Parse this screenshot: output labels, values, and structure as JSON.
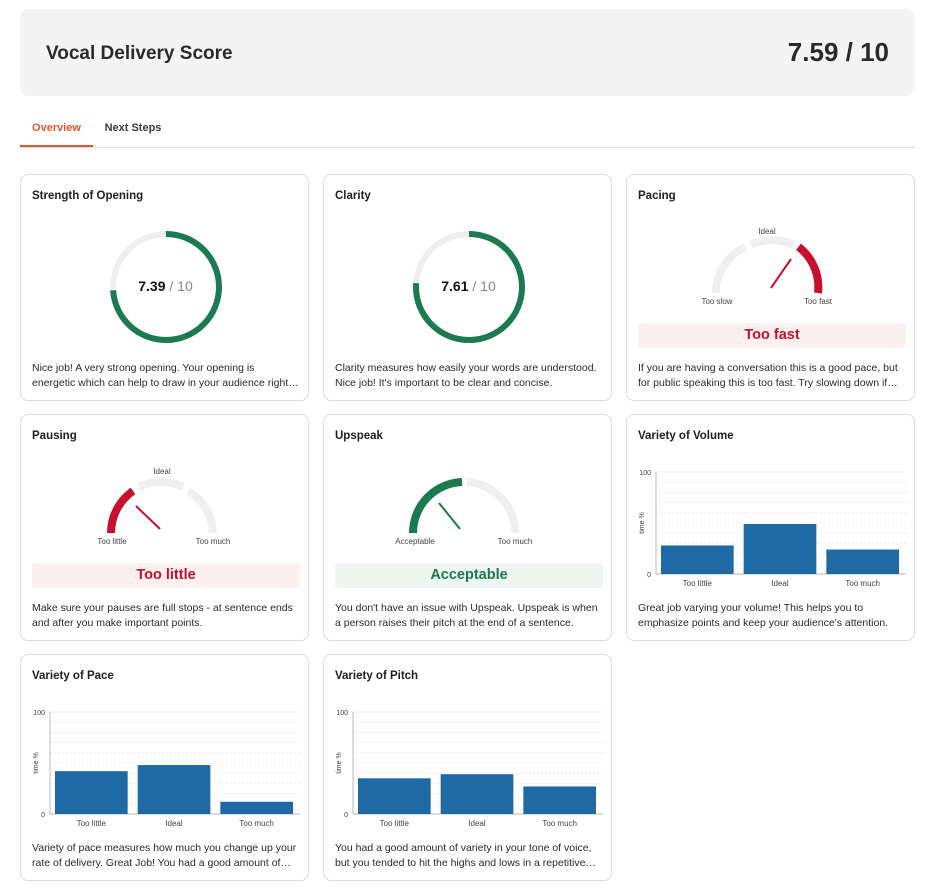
{
  "header": {
    "title": "Vocal Delivery Score",
    "score": "7.59 / 10"
  },
  "tabs": [
    {
      "label": "Overview",
      "active": true
    },
    {
      "label": "Next Steps",
      "active": false
    }
  ],
  "colors": {
    "accent": "#e4572e",
    "good": "#1b7a4e",
    "bad": "#c8102e",
    "bar": "#1f6aa5",
    "track": "#efefef"
  },
  "cards": {
    "opening": {
      "title": "Strength of Opening",
      "value": "7.39",
      "denominator": "/ 10",
      "score": 7.39,
      "max": 10,
      "description": "Nice job! A very strong opening. Your opening is energetic which can help to draw in your audience right from the start."
    },
    "clarity": {
      "title": "Clarity",
      "value": "7.61",
      "denominator": "/ 10",
      "score": 7.61,
      "max": 10,
      "description": "Clarity measures how easily your words are understood. Nice job! It's important to be clear and concise."
    },
    "pacing": {
      "title": "Pacing",
      "gauge_low": "Too slow",
      "gauge_mid": "Ideal",
      "gauge_high": "Too fast",
      "verdict": "Too fast",
      "verdict_status": "bad",
      "description": "If you are having a conversation this is a good pace, but for public speaking this is too fast. Try slowing down if you can."
    },
    "pausing": {
      "title": "Pausing",
      "gauge_low": "Too little",
      "gauge_mid": "Ideal",
      "gauge_high": "Too much",
      "verdict": "Too little",
      "verdict_status": "bad",
      "description": "Make sure your pauses are full stops - at sentence ends and after you make important points."
    },
    "upspeak": {
      "title": "Upspeak",
      "gauge_low": "Acceptable",
      "gauge_high": "Too much",
      "verdict": "Acceptable",
      "verdict_status": "good",
      "description": "You don't have an issue with Upspeak. Upspeak is when a person raises their pitch at the end of a sentence."
    },
    "volume": {
      "title": "Variety of Volume",
      "description": "Great job varying your volume! This helps you to emphasize points and keep your audience's attention."
    },
    "pace": {
      "title": "Variety of Pace",
      "description": "Variety of pace measures how much you change up your rate of delivery. Great Job! You had a good amount of variety."
    },
    "pitch": {
      "title": "Variety of Pitch",
      "description": "You had a good amount of variety in your tone of voice, but you tended to hit the highs and lows in a repetitive way."
    }
  },
  "chart_data": [
    {
      "id": "volume",
      "type": "bar",
      "categories": [
        "Too little",
        "Ideal",
        "Too much"
      ],
      "values": [
        28,
        49,
        24
      ],
      "ylabel": "time %",
      "ylim": [
        0,
        100
      ],
      "yticks": [
        "0",
        "100"
      ],
      "grid": true
    },
    {
      "id": "pace",
      "type": "bar",
      "categories": [
        "Too little",
        "Ideal",
        "Too much"
      ],
      "values": [
        42,
        48,
        12
      ],
      "ylabel": "time %",
      "ylim": [
        0,
        100
      ],
      "yticks": [
        "0",
        "100"
      ],
      "grid": true
    },
    {
      "id": "pitch",
      "type": "bar",
      "categories": [
        "Too little",
        "Ideal",
        "Too much"
      ],
      "values": [
        35,
        39,
        27
      ],
      "ylabel": "time %",
      "ylim": [
        0,
        100
      ],
      "yticks": [
        "0",
        "100"
      ],
      "grid": true
    }
  ]
}
